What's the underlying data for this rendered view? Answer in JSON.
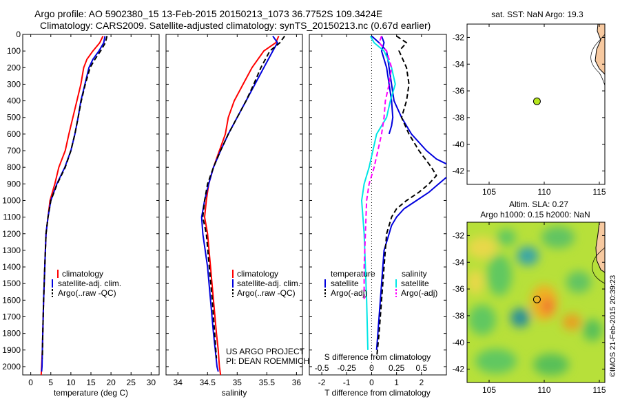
{
  "header": {
    "line1": "Argo profile: AO 5902380_15 13-Feb-2015 20150213_1073 36.7752S 109.3424E",
    "line2": "Climatology: CARS2009. Satellite-adjusted climatology: synTS_20150213.nc (0.67d earlier)"
  },
  "credit": "©IMOS 21-Feb-2015 20:39:23",
  "colors": {
    "climatology": "#ff0000",
    "satellite": "#0000dd",
    "argo": "#000000",
    "salinity_sat": "#00e6e6",
    "salinity_argo": "#ff00ff",
    "land": "#f7c9a0",
    "marker": "#b5e61d"
  },
  "chart_data": [
    {
      "id": "temperature",
      "type": "line",
      "xlabel": "temperature (deg C)",
      "ylabel": "",
      "xlim": [
        -2,
        32
      ],
      "ylim": [
        2050,
        0
      ],
      "xticks": [
        0,
        5,
        10,
        15,
        20,
        25,
        30
      ],
      "yticks": [
        0,
        100,
        200,
        300,
        400,
        500,
        600,
        700,
        800,
        900,
        1000,
        1100,
        1200,
        1300,
        1400,
        1500,
        1600,
        1700,
        1800,
        1900,
        2000
      ],
      "legend": [
        "climatology",
        "satellite-adj. clim.",
        "Argo(..raw -QC)"
      ],
      "series": [
        {
          "name": "climatology",
          "style": "solid",
          "color": "climatology",
          "x": [
            18.0,
            17.2,
            15.5,
            14.0,
            13.2,
            12.5,
            11.5,
            10.5,
            9.5,
            8.6,
            7.0,
            6.0,
            4.8,
            4.3,
            3.8,
            3.5,
            3.2,
            3.0,
            2.9,
            2.7,
            2.6
          ],
          "y": [
            10,
            50,
            100,
            150,
            200,
            300,
            400,
            500,
            600,
            700,
            800,
            900,
            1000,
            1100,
            1200,
            1400,
            1600,
            1800,
            1900,
            2000,
            2050
          ]
        },
        {
          "name": "satellite-adj. clim.",
          "style": "solid",
          "color": "satellite",
          "x": [
            18.5,
            18.2,
            17.0,
            15.5,
            14.5,
            13.5,
            12.5,
            11.8,
            11.0,
            10.0,
            8.5,
            6.5,
            5.0,
            4.3,
            3.8,
            3.5,
            3.2,
            3.0,
            2.9,
            2.8,
            2.7
          ],
          "y": [
            10,
            50,
            100,
            150,
            200,
            300,
            400,
            500,
            600,
            700,
            800,
            900,
            1000,
            1100,
            1200,
            1400,
            1600,
            1800,
            1900,
            2000,
            2030
          ]
        },
        {
          "name": "Argo(..raw -QC)",
          "style": "dashed",
          "color": "argo",
          "x": [
            19.0,
            18.6,
            17.4,
            16.0,
            14.8,
            13.6,
            12.6,
            11.8,
            11.0,
            10.0,
            8.6,
            6.6,
            5.0,
            4.3,
            3.8,
            3.5,
            3.2,
            3.0,
            2.9
          ],
          "y": [
            10,
            50,
            100,
            150,
            200,
            300,
            400,
            500,
            600,
            700,
            800,
            900,
            1000,
            1100,
            1200,
            1400,
            1600,
            1800,
            1950
          ]
        }
      ]
    },
    {
      "id": "salinity",
      "type": "line",
      "xlabel": "salinity",
      "ylabel": "",
      "xlim": [
        33.8,
        36.1
      ],
      "ylim": [
        2050,
        0
      ],
      "xticks": [
        34,
        34.5,
        35,
        35.5,
        36
      ],
      "yticks": [
        0,
        100,
        200,
        300,
        400,
        500,
        600,
        700,
        800,
        900,
        1000,
        1100,
        1200,
        1300,
        1400,
        1500,
        1600,
        1700,
        1800,
        1900,
        2000
      ],
      "legend": [
        "climatology",
        "satellite-adj. clim.",
        "Argo(..raw -QC)"
      ],
      "annotations": [
        "US ARGO PROJECT",
        "PI: DEAN ROEMMICH"
      ],
      "series": [
        {
          "name": "climatology",
          "style": "solid",
          "color": "climatology",
          "x": [
            35.7,
            35.65,
            35.45,
            35.25,
            35.1,
            34.95,
            34.85,
            34.8,
            34.7,
            34.6,
            34.52,
            34.48,
            34.45,
            34.5,
            34.55,
            34.6,
            34.65,
            34.68,
            34.7,
            34.72
          ],
          "y": [
            10,
            50,
            100,
            200,
            300,
            400,
            500,
            600,
            700,
            800,
            900,
            1000,
            1100,
            1200,
            1400,
            1600,
            1800,
            1900,
            2000,
            2050
          ]
        },
        {
          "name": "satellite-adj. clim.",
          "style": "solid",
          "color": "satellite",
          "x": [
            35.6,
            35.68,
            35.6,
            35.45,
            35.3,
            35.15,
            35.0,
            34.85,
            34.72,
            34.6,
            34.52,
            34.45,
            34.4,
            34.42,
            34.5,
            34.55,
            34.6,
            34.63,
            34.66,
            34.68
          ],
          "y": [
            10,
            50,
            100,
            200,
            300,
            400,
            500,
            600,
            700,
            800,
            900,
            1000,
            1100,
            1200,
            1400,
            1600,
            1800,
            1900,
            2000,
            2030
          ]
        },
        {
          "name": "Argo(..raw -QC)",
          "style": "dashed",
          "color": "argo",
          "x": [
            35.8,
            35.72,
            35.55,
            35.4,
            35.28,
            35.15,
            35.0,
            34.85,
            34.72,
            34.6,
            34.5,
            34.45,
            34.42,
            34.48,
            34.53,
            34.58,
            34.62,
            34.65
          ],
          "y": [
            10,
            50,
            100,
            200,
            300,
            400,
            500,
            600,
            700,
            800,
            900,
            1000,
            1100,
            1200,
            1400,
            1600,
            1800,
            1950
          ]
        }
      ]
    },
    {
      "id": "difference",
      "type": "line",
      "xlabel": "T difference from climatology",
      "top_xlabel": "S difference from climatology",
      "ylabel": "",
      "xlim": [
        -2.5,
        3.0
      ],
      "ylim": [
        2050,
        0
      ],
      "xticks": [
        -2,
        -1,
        0,
        1,
        2
      ],
      "top_xticks": [
        -0.5,
        -0.25,
        0,
        0.25,
        0.5
      ],
      "top_xtick_labels": [
        "-0.5",
        "-0.25",
        "0",
        "0.25",
        "0.5"
      ],
      "yticks": [
        0,
        100,
        200,
        300,
        400,
        500,
        600,
        700,
        800,
        900,
        1000,
        1100,
        1200,
        1300,
        1400,
        1500,
        1600,
        1700,
        1800,
        1900,
        2000
      ],
      "legend_titles": [
        "temperature",
        "salinity"
      ],
      "legend": [
        "satellite",
        "Argo(-adj)",
        "satellite",
        "Argo(-adj)"
      ],
      "series": [
        {
          "name": "satellite",
          "group": "temperature",
          "style": "solid",
          "color": "satellite",
          "x": [
            0.0,
            0.3,
            0.6,
            0.7,
            0.9,
            1.2,
            1.6,
            2.2,
            2.6,
            3.0
          ],
          "y": [
            10,
            50,
            100,
            200,
            400,
            500,
            600,
            700,
            750,
            780
          ]
        },
        {
          "name": "satellite",
          "group": "temperature",
          "style": "solid",
          "color": "satellite",
          "x": [
            3.0,
            2.3,
            1.8,
            1.3,
            1.0,
            0.8,
            0.7,
            0.6,
            0.5,
            0.45,
            0.4,
            0.35,
            0.3,
            0.25,
            0.2
          ],
          "y": [
            860,
            950,
            1000,
            1050,
            1100,
            1150,
            1200,
            1250,
            1300,
            1400,
            1500,
            1600,
            1700,
            1800,
            1900
          ]
        },
        {
          "name": "satellite",
          "group": "temperature",
          "style": "solid",
          "color": "satellite",
          "x": [
            0.4,
            0.5,
            0.4,
            0.6,
            0.7,
            0.8,
            0.85,
            0.8,
            0.7
          ],
          "y": [
            10,
            50,
            100,
            200,
            300,
            400,
            500,
            550,
            600
          ]
        },
        {
          "name": "Argo(-adj)",
          "group": "temperature",
          "style": "dashed",
          "color": "argo",
          "x": [
            1.0,
            1.4,
            1.1,
            1.4,
            1.5,
            1.4,
            1.2,
            1.5,
            1.9,
            2.4,
            2.6,
            2.3,
            1.9,
            1.4,
            1.0,
            0.8,
            0.6,
            0.5,
            0.4,
            0.3,
            0.2
          ],
          "y": [
            10,
            50,
            100,
            200,
            300,
            400,
            500,
            600,
            700,
            800,
            850,
            900,
            950,
            1000,
            1050,
            1100,
            1200,
            1400,
            1600,
            1800,
            1950
          ]
        },
        {
          "name": "satellite",
          "group": "salinity",
          "style": "solid",
          "color": "salinity_sat",
          "x": [
            -0.05,
            0.1,
            0.5,
            0.8,
            0.95,
            0.75,
            0.6,
            0.2,
            -0.1,
            -0.3,
            -0.4,
            -0.35,
            -0.3,
            -0.25,
            -0.2,
            -0.15
          ],
          "y": [
            10,
            50,
            100,
            200,
            300,
            400,
            500,
            600,
            800,
            900,
            1000,
            1100,
            1200,
            1400,
            1600,
            1900
          ]
        },
        {
          "name": "Argo(-adj)",
          "group": "salinity",
          "style": "dashed",
          "color": "salinity_argo",
          "x": [
            0.4,
            0.3,
            0.6,
            0.8,
            0.7,
            0.55,
            0.5,
            0.4,
            0.1,
            -0.1,
            -0.2,
            -0.25,
            -0.3,
            -0.3
          ],
          "y": [
            10,
            50,
            100,
            200,
            300,
            400,
            500,
            600,
            800,
            900,
            1000,
            1200,
            1400,
            1600
          ]
        }
      ]
    },
    {
      "id": "sst-map",
      "type": "scatter",
      "title": "sat. SST: NaN Argo: 19.3",
      "xlim": [
        103,
        115.5
      ],
      "ylim": [
        -43,
        -31
      ],
      "xticks": [
        105,
        110,
        115
      ],
      "yticks": [
        -32,
        -34,
        -36,
        -38,
        -40,
        -42
      ],
      "points": [
        {
          "x": 109.34,
          "y": -36.78
        }
      ]
    },
    {
      "id": "sla-map",
      "type": "heatmap",
      "title_lines": [
        "Altim. SLA: 0.27",
        "Argo h1000: 0.15 h2000: NaN"
      ],
      "xlim": [
        103,
        115.5
      ],
      "ylim": [
        -43,
        -31
      ],
      "xticks": [
        105,
        110,
        115
      ],
      "yticks": [
        -32,
        -34,
        -36,
        -38,
        -40,
        -42
      ],
      "points": [
        {
          "x": 109.34,
          "y": -36.78
        }
      ]
    }
  ]
}
